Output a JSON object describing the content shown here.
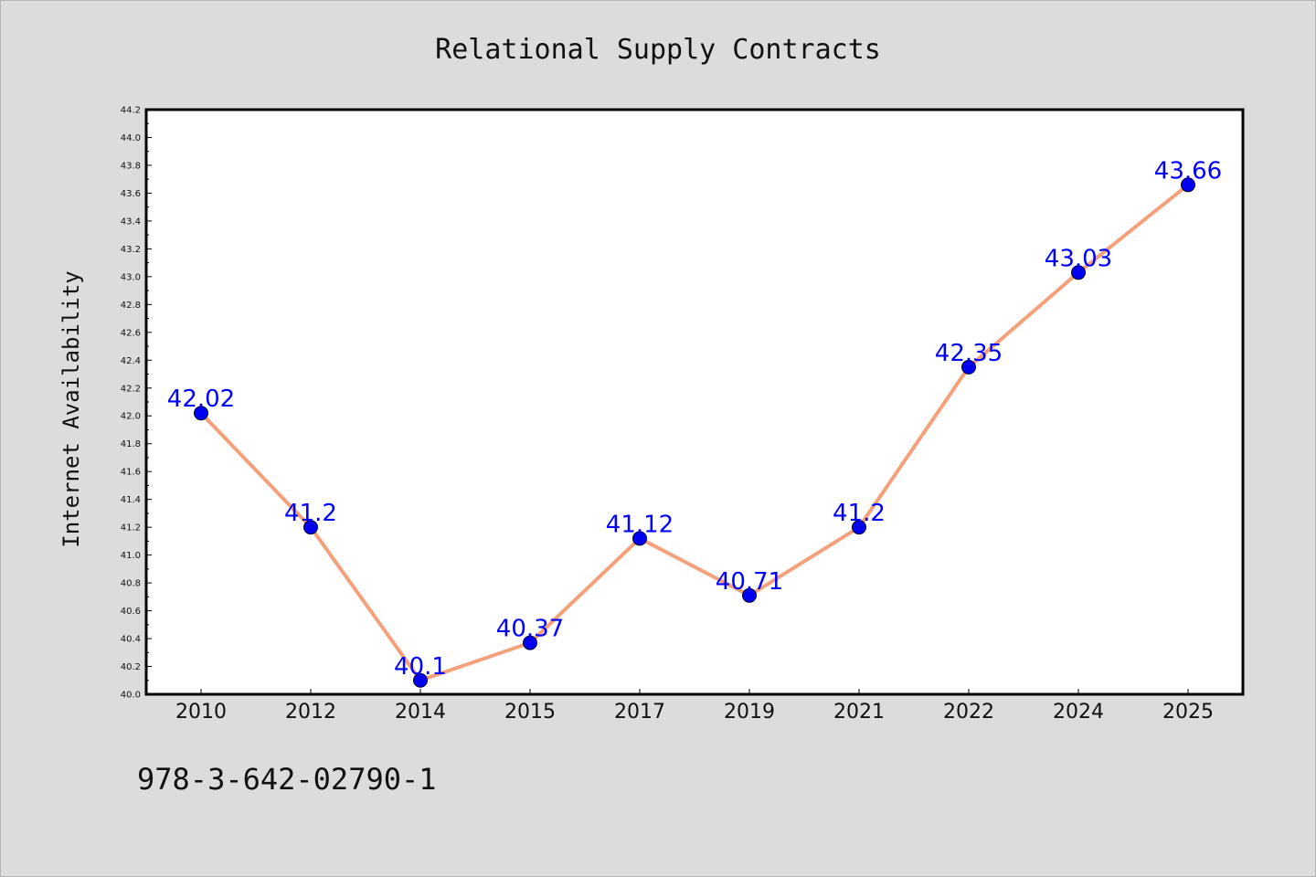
{
  "chart_data": {
    "type": "line",
    "title": "Relational Supply Contracts",
    "xlabel": "",
    "ylabel": "Internet Availability",
    "categories": [
      "2010",
      "2012",
      "2014",
      "2015",
      "2017",
      "2019",
      "2021",
      "2022",
      "2024",
      "2025"
    ],
    "series": [
      {
        "values": [
          42.02,
          41.2,
          40.1,
          40.37,
          41.12,
          40.71,
          41.2,
          42.35,
          43.03,
          43.66
        ],
        "labels": [
          "42.02",
          "41.2",
          "40.1",
          "40.37",
          "41.12",
          "40.71",
          "41.2",
          "42.35",
          "43.03",
          "43.66"
        ],
        "line_color": "#f4a07a",
        "marker_color": "#0000ee",
        "label_color": "#0000ff"
      }
    ],
    "ylim": [
      40.0,
      44.2
    ],
    "yticks": [
      "40.0",
      "40.2",
      "40.4",
      "40.6",
      "40.8",
      "41.0",
      "41.2",
      "41.4",
      "41.6",
      "41.8",
      "42.0",
      "42.2",
      "42.4",
      "42.6",
      "42.8",
      "43.0",
      "43.2",
      "43.4",
      "43.6",
      "43.8",
      "44.0",
      "44.2"
    ],
    "grid": false,
    "legend": "none"
  },
  "footer": {
    "isbn": "978-3-642-02790-1"
  },
  "colors": {
    "background": "#dcdcdc",
    "plot_background": "#ffffff",
    "axis": "#000000",
    "text": "#111111"
  }
}
